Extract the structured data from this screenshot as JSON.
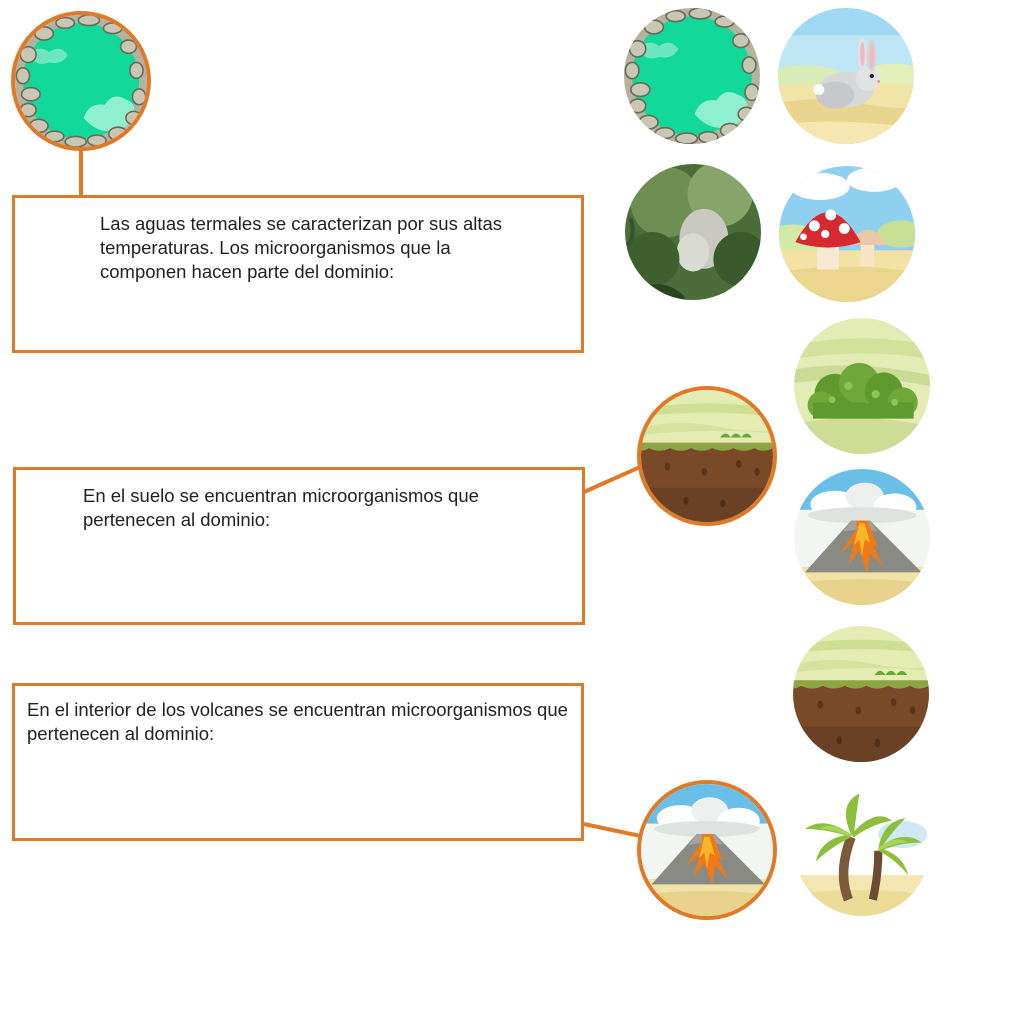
{
  "questions": [
    {
      "text": "Las aguas termales se caracterizan por sus altas temperaturas. Los microorganismos que la componen hacen parte del dominio:",
      "attached_image": "hot-spring"
    },
    {
      "text": "En el suelo se encuentran microorganismos que pertenecen al dominio:",
      "attached_image": "soil"
    },
    {
      "text": "En el interior de los volcanes se encuentran microorganismos que pertenecen al dominio:",
      "attached_image": "volcano"
    }
  ],
  "image_bank": [
    "hot-spring",
    "rabbit",
    "forest",
    "mushroom",
    "bush",
    "volcano",
    "soil",
    "palm-trees"
  ],
  "colors": {
    "accent": "#e07a26",
    "text": "#222222"
  }
}
